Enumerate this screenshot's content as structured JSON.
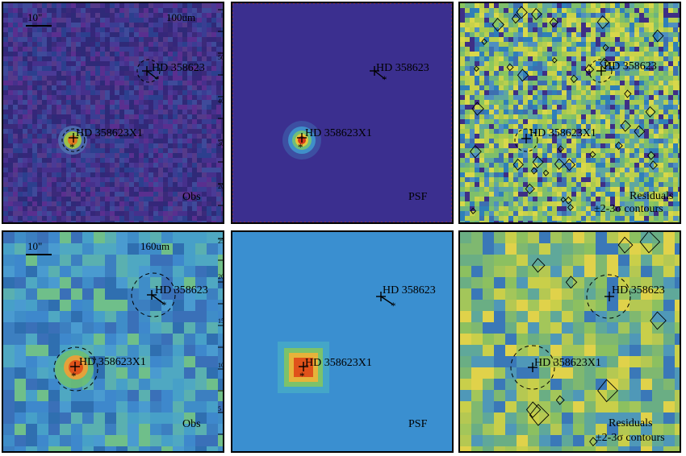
{
  "figure": {
    "rows": [
      {
        "band": "100um",
        "scale_bar": "10\"",
        "tick_labels": [
          "50",
          "40",
          "30",
          "20",
          "10"
        ],
        "colors": {
          "observed_background": "#3e2d82",
          "psf_background": "#3b2f8f",
          "residual_background": "#4d9f8f",
          "source_core": "#d63a1a"
        },
        "panels": [
          {
            "kind": "observed",
            "label": "Obs",
            "sources": [
              {
                "name": "HD 358623",
                "marker_style": "cross with star offset",
                "circle": "dashed"
              },
              {
                "name": "HD 358623X1",
                "marker_style": "cross with star",
                "circle": "dashed"
              }
            ]
          },
          {
            "kind": "psf",
            "label": "PSF",
            "sources": [
              {
                "name": "HD 358623",
                "marker_style": "cross with star offset",
                "circle": "none"
              },
              {
                "name": "HD 358623X1",
                "marker_style": "cross with star",
                "circle": "none"
              }
            ]
          },
          {
            "kind": "residual",
            "label_line1": "Residuals",
            "label_line2": "±2-3σ contours",
            "sources": [
              {
                "name": "HD 358623",
                "marker_style": "cross",
                "circle": "dashed"
              },
              {
                "name": "HD 358623X1",
                "marker_style": "cross",
                "circle": "dashed"
              }
            ]
          }
        ]
      },
      {
        "band": "160um",
        "scale_bar": "10\"",
        "tick_labels": [
          "25",
          "20",
          "15",
          "10",
          "5"
        ],
        "colors": {
          "observed_background": "#3f8dc8",
          "psf_background": "#3a8fd0",
          "residual_background": "#7fb870",
          "source_core": "#e0521a"
        },
        "panels": [
          {
            "kind": "observed",
            "label": "Obs",
            "sources": [
              {
                "name": "HD 358623",
                "marker_style": "cross with star offset",
                "circle": "dashed"
              },
              {
                "name": "HD 358623X1",
                "marker_style": "cross with star",
                "circle": "dashed"
              }
            ]
          },
          {
            "kind": "psf",
            "label": "PSF",
            "sources": [
              {
                "name": "HD 358623",
                "marker_style": "cross with star offset",
                "circle": "none"
              },
              {
                "name": "HD 358623X1",
                "marker_style": "cross with star",
                "circle": "none"
              }
            ]
          },
          {
            "kind": "residual",
            "label_line1": "Residuals",
            "label_line2": "±2-3σ contours",
            "sources": [
              {
                "name": "HD 358623",
                "marker_style": "cross",
                "circle": "dashed"
              },
              {
                "name": "HD 358623X1",
                "marker_style": "cross",
                "circle": "dashed"
              }
            ]
          }
        ]
      }
    ]
  }
}
